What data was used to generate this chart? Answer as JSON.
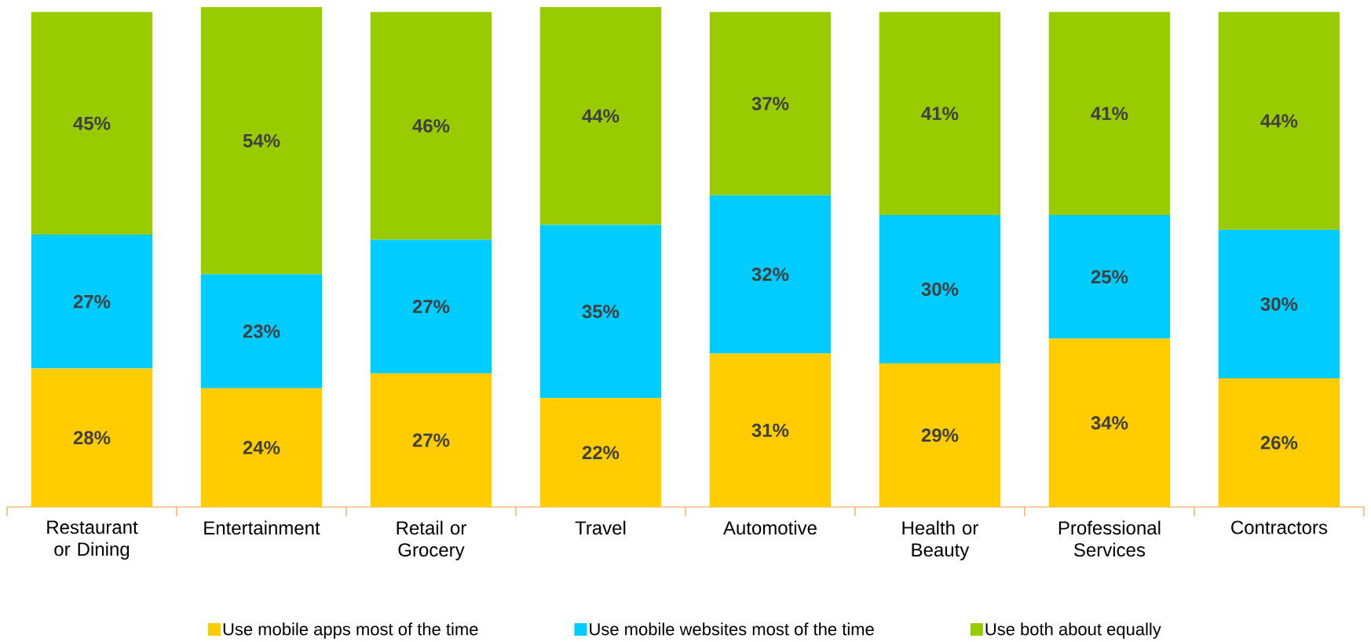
{
  "chart_data": {
    "type": "bar",
    "stacked": true,
    "legend": "bottom",
    "ylim": [
      0,
      101
    ],
    "categories": [
      "Restaurant or Dining",
      "Entertainment",
      "Retail or Grocery",
      "Travel",
      "Automotive",
      "Health or Beauty",
      "Professional Services",
      "Contractors"
    ],
    "series": [
      {
        "name": "Use mobile apps most of the time",
        "color": "#ffcc00",
        "values": [
          28,
          24,
          27,
          22,
          31,
          29,
          34,
          26
        ],
        "value_labels": [
          "28%",
          "24%",
          "27%",
          "22%",
          "31%",
          "29%",
          "34%",
          "26%"
        ]
      },
      {
        "name": "Use mobile websites most of the time",
        "color": "#00ccff",
        "values": [
          27,
          23,
          27,
          35,
          32,
          30,
          25,
          30
        ],
        "value_labels": [
          "27%",
          "23%",
          "27%",
          "35%",
          "32%",
          "30%",
          "25%",
          "30%"
        ]
      },
      {
        "name": "Use both about equally",
        "color": "#99cc00",
        "values": [
          45,
          54,
          46,
          44,
          37,
          41,
          41,
          44
        ],
        "value_labels": [
          "45%",
          "54%",
          "46%",
          "44%",
          "37%",
          "41%",
          "41%",
          "44%"
        ]
      }
    ]
  }
}
